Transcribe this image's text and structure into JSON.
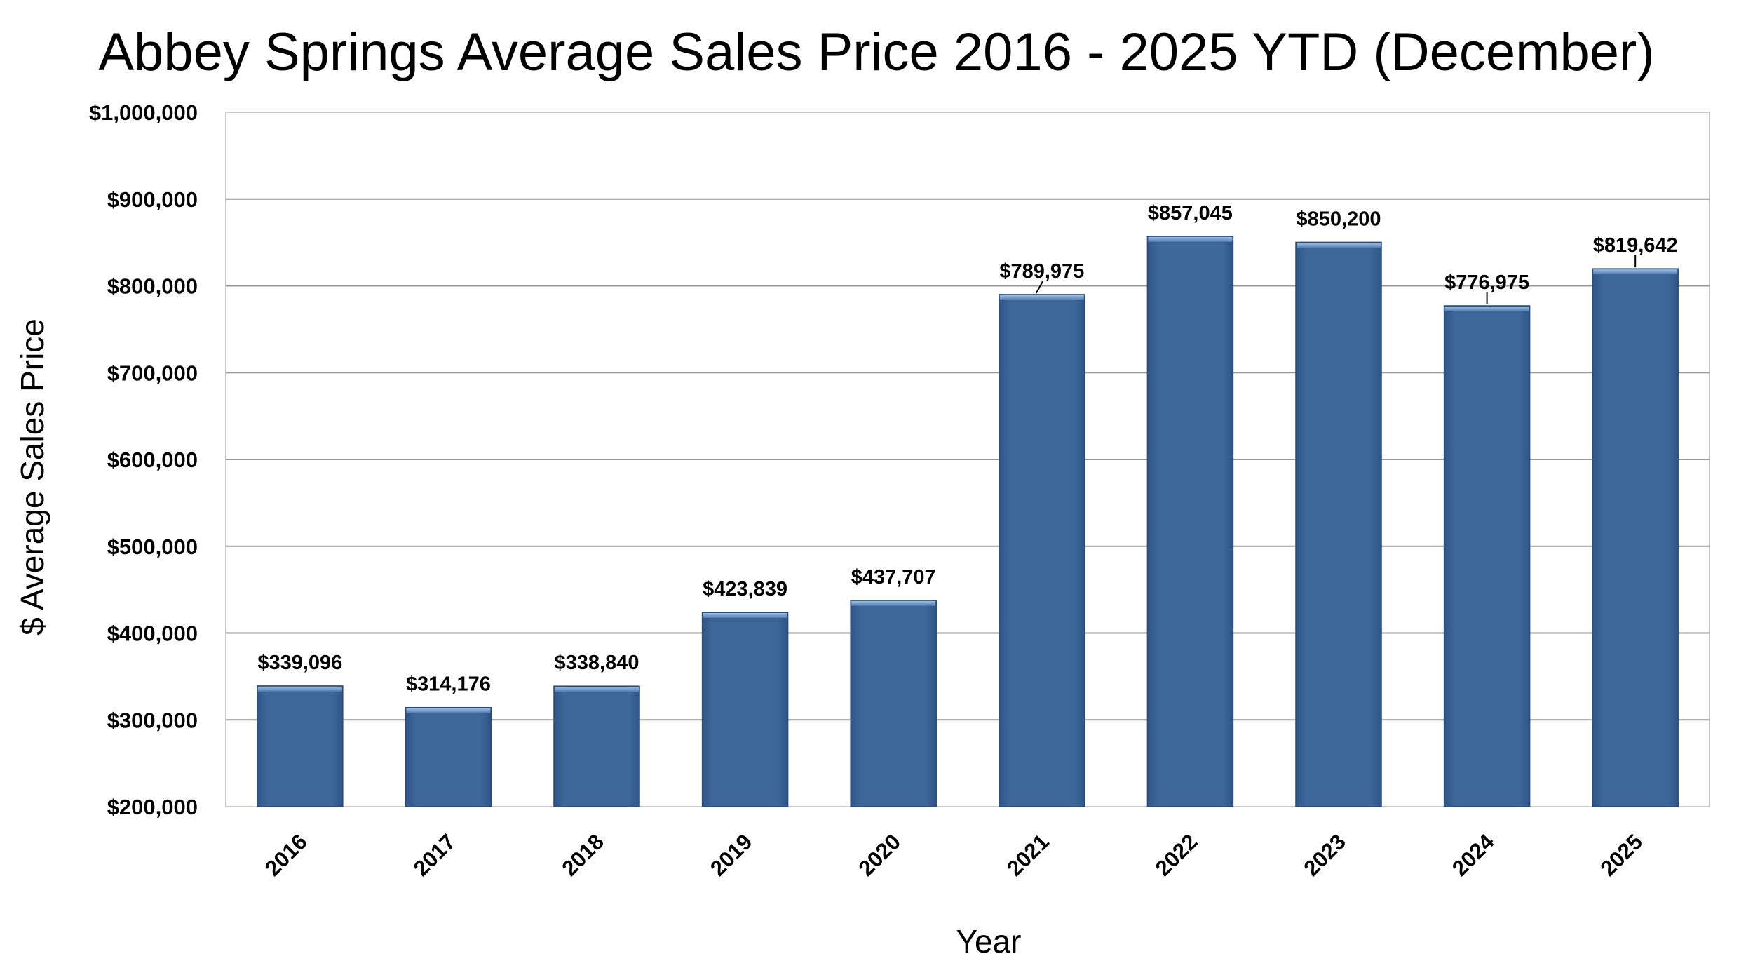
{
  "chart_data": {
    "type": "bar",
    "title": "Abbey Springs Average Sales Price 2016 - 2025 YTD (December)",
    "xlabel": "Year",
    "ylabel": "$ Average Sales Price",
    "categories": [
      "2016",
      "2017",
      "2018",
      "2019",
      "2020",
      "2021",
      "2022",
      "2023",
      "2024",
      "2025"
    ],
    "values": [
      339096,
      314176,
      338840,
      423839,
      437707,
      789975,
      857045,
      850200,
      776975,
      819642
    ],
    "data_labels": [
      "$339,096",
      "$314,176",
      "$338,840",
      "$423,839",
      "$437,707",
      "$789,975",
      "$857,045",
      "$850,200",
      "$776,975",
      "$819,642"
    ],
    "ylim": [
      200000,
      1000000
    ],
    "yticks": [
      200000,
      300000,
      400000,
      500000,
      600000,
      700000,
      800000,
      900000,
      1000000
    ],
    "ytick_labels": [
      "$200,000",
      "$300,000",
      "$400,000",
      "$500,000",
      "$600,000",
      "$700,000",
      "$800,000",
      "$900,000",
      "$1,000,000"
    ],
    "grid": true,
    "legend": "none",
    "colors": {
      "bar": "#3d6699",
      "bar_highlight": "#7ea5d8",
      "bar_edge": "#2a4a73",
      "grid": "#999999",
      "plot_border": "#c8c8c8"
    }
  }
}
